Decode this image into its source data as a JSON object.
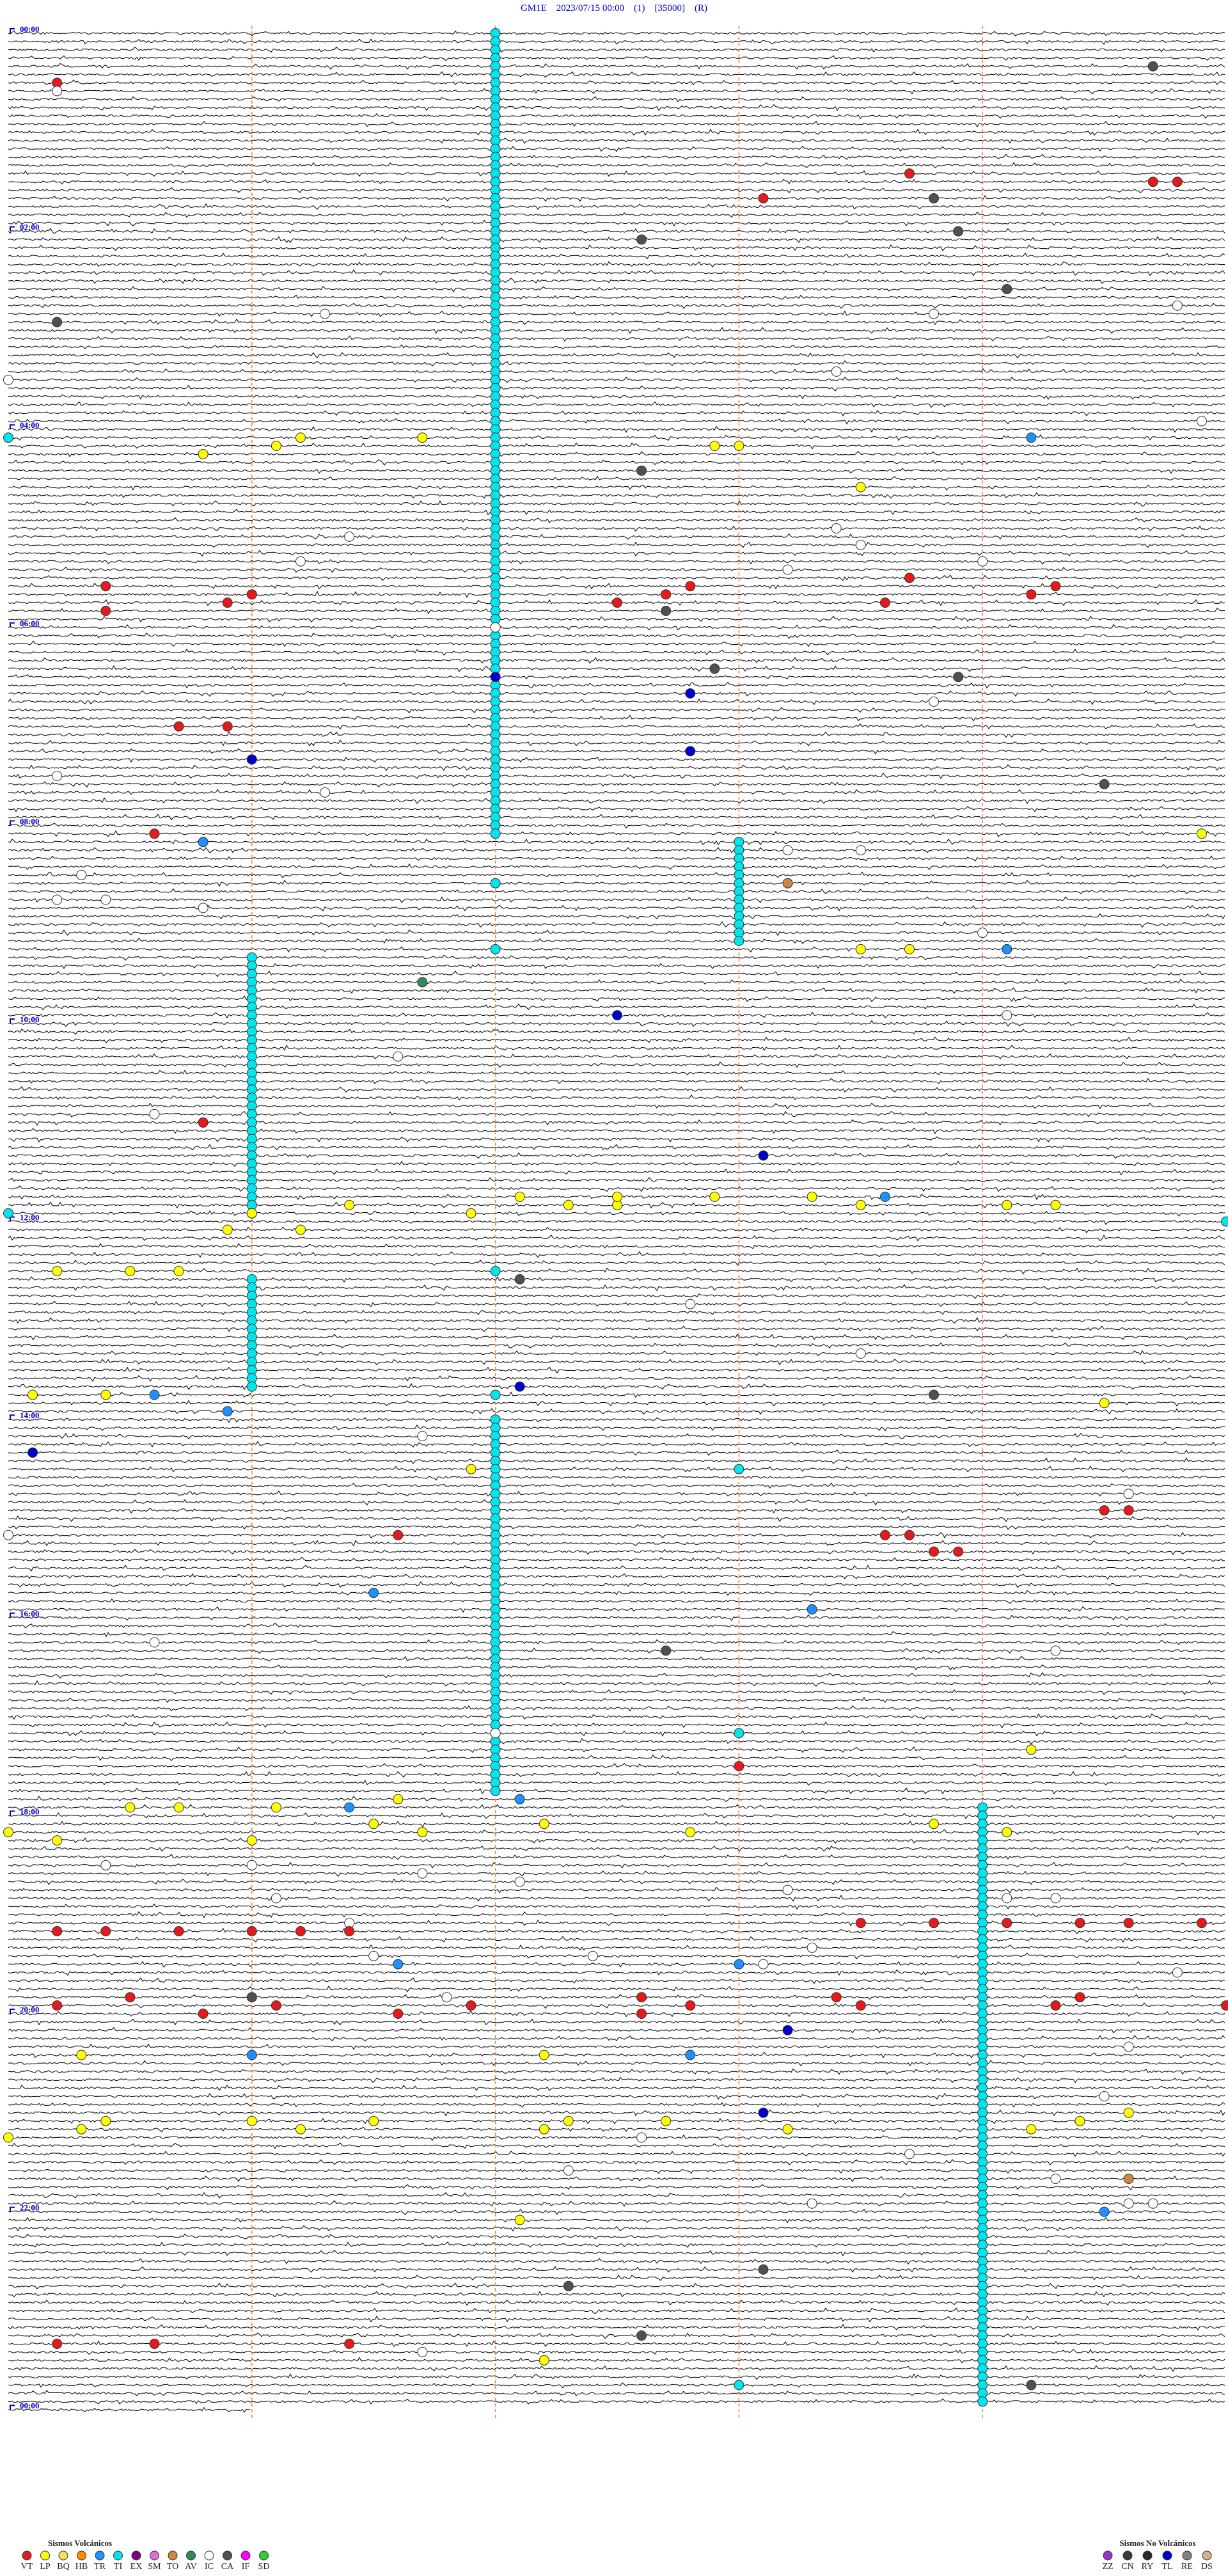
{
  "header": {
    "title": "GM1E    2023/07/15 00:00    (1)    [35000]    (R)"
  },
  "hour_labels": [
    "00:00",
    "02:00",
    "04:00",
    "06:00",
    "08:00",
    "10:00",
    "12:00",
    "14:00",
    "16:00",
    "18:00",
    "20:00",
    "22:00",
    "00:00"
  ],
  "runs": [
    {
      "code": "TI",
      "minute": 2.0,
      "from": 0,
      "to": 97
    },
    {
      "code": "TI",
      "minute": 3.0,
      "from": 98,
      "to": 110
    },
    {
      "code": "TI",
      "minute": 1.0,
      "from": 112,
      "to": 143
    },
    {
      "code": "TI",
      "minute": 1.0,
      "from": 151,
      "to": 164
    },
    {
      "code": "TI",
      "minute": 2.0,
      "from": 168,
      "to": 213
    },
    {
      "code": "TI",
      "minute": 4.0,
      "from": 215,
      "to": 287
    }
  ],
  "events": [
    [
      4,
      4.7,
      "CA"
    ],
    [
      6,
      0.2,
      "VT"
    ],
    [
      7,
      0.2,
      "IC"
    ],
    [
      17,
      3.7,
      "VT"
    ],
    [
      18,
      4.7,
      "VT"
    ],
    [
      18,
      4.8,
      "VT"
    ],
    [
      20,
      3.1,
      "VT"
    ],
    [
      20,
      3.8,
      "CA"
    ],
    [
      24,
      3.9,
      "CA"
    ],
    [
      25,
      2.6,
      "CA"
    ],
    [
      31,
      4.1,
      "CA"
    ],
    [
      33,
      4.8,
      "IC"
    ],
    [
      34,
      1.3,
      "IC"
    ],
    [
      34,
      3.8,
      "IC"
    ],
    [
      35,
      0.2,
      "CA"
    ],
    [
      41,
      3.4,
      "IC"
    ],
    [
      42,
      0.0,
      "IC"
    ],
    [
      47,
      4.9,
      "IC"
    ],
    [
      49,
      0.0,
      "TI"
    ],
    [
      49,
      1.2,
      "LP"
    ],
    [
      49,
      1.7,
      "LP"
    ],
    [
      50,
      1.1,
      "LP"
    ],
    [
      50,
      2.9,
      "LP"
    ],
    [
      50,
      3.0,
      "LP"
    ],
    [
      51,
      0.8,
      "LP"
    ],
    [
      49,
      4.2,
      "TR"
    ],
    [
      53,
      2.6,
      "CA"
    ],
    [
      55,
      3.5,
      "LP"
    ],
    [
      61,
      1.4,
      "IC"
    ],
    [
      60,
      3.4,
      "IC"
    ],
    [
      62,
      3.5,
      "IC"
    ],
    [
      64,
      1.2,
      "IC"
    ],
    [
      64,
      4.0,
      "IC"
    ],
    [
      65,
      3.2,
      "IC"
    ],
    [
      67,
      0.4,
      "VT"
    ],
    [
      66,
      3.7,
      "VT"
    ],
    [
      67,
      4.3,
      "VT"
    ],
    [
      68,
      1.0,
      "VT"
    ],
    [
      69,
      0.9,
      "VT"
    ],
    [
      67,
      2.8,
      "VT"
    ],
    [
      68,
      2.7,
      "VT"
    ],
    [
      69,
      2.5,
      "VT"
    ],
    [
      69,
      3.6,
      "VT"
    ],
    [
      68,
      4.2,
      "VT"
    ],
    [
      70,
      0.4,
      "VT"
    ],
    [
      70,
      2.7,
      "CA"
    ],
    [
      72,
      2.0,
      "IC"
    ],
    [
      77,
      2.9,
      "CA"
    ],
    [
      78,
      3.9,
      "CA"
    ],
    [
      78,
      2.0,
      "TL"
    ],
    [
      80,
      2.8,
      "TL"
    ],
    [
      81,
      3.8,
      "IC"
    ],
    [
      84,
      0.7,
      "VT"
    ],
    [
      84,
      0.9,
      "VT"
    ],
    [
      87,
      2.8,
      "TL"
    ],
    [
      88,
      1.0,
      "TL"
    ],
    [
      90,
      0.2,
      "IC"
    ],
    [
      91,
      4.5,
      "CA"
    ],
    [
      92,
      1.3,
      "IC"
    ],
    [
      97,
      0.6,
      "VT"
    ],
    [
      98,
      0.8,
      "TR"
    ],
    [
      97,
      4.9,
      "LP"
    ],
    [
      99,
      3.2,
      "IC"
    ],
    [
      99,
      3.5,
      "IC"
    ],
    [
      102,
      0.3,
      "IC"
    ],
    [
      103,
      3.2,
      "TO"
    ],
    [
      103,
      2.0,
      "TI"
    ],
    [
      105,
      0.2,
      "IC"
    ],
    [
      105,
      0.4,
      "IC"
    ],
    [
      106,
      0.8,
      "IC"
    ],
    [
      109,
      4.0,
      "IC"
    ],
    [
      111,
      3.5,
      "LP"
    ],
    [
      111,
      3.7,
      "LP"
    ],
    [
      111,
      4.1,
      "TR"
    ],
    [
      111,
      2.0,
      "TI"
    ],
    [
      115,
      1.7,
      "AV"
    ],
    [
      119,
      2.5,
      "TL"
    ],
    [
      119,
      4.1,
      "IC"
    ],
    [
      124,
      1.6,
      "IC"
    ],
    [
      131,
      0.6,
      "IC"
    ],
    [
      132,
      0.8,
      "VT"
    ],
    [
      136,
      3.1,
      "TL"
    ],
    [
      142,
      1.4,
      "LP"
    ],
    [
      141,
      2.1,
      "LP"
    ],
    [
      142,
      2.3,
      "LP"
    ],
    [
      142,
      2.5,
      "LP"
    ],
    [
      141,
      2.5,
      "LP"
    ],
    [
      141,
      2.9,
      "LP"
    ],
    [
      141,
      3.3,
      "LP"
    ],
    [
      142,
      3.5,
      "LP"
    ],
    [
      141,
      3.6,
      "TR"
    ],
    [
      142,
      4.1,
      "LP"
    ],
    [
      142,
      4.3,
      "LP"
    ],
    [
      143,
      1.9,
      "LP"
    ],
    [
      143,
      0.0,
      "TI"
    ],
    [
      144,
      5.0,
      "TI"
    ],
    [
      143,
      1.0,
      "LP"
    ],
    [
      145,
      0.9,
      "LP"
    ],
    [
      145,
      1.2,
      "LP"
    ],
    [
      150,
      0.2,
      "LP"
    ],
    [
      150,
      0.5,
      "LP"
    ],
    [
      150,
      0.7,
      "LP"
    ],
    [
      150,
      2.0,
      "TI"
    ],
    [
      151,
      2.1,
      "CA"
    ],
    [
      154,
      2.8,
      "IC"
    ],
    [
      160,
      3.5,
      "IC"
    ],
    [
      164,
      2.1,
      "TL"
    ],
    [
      165,
      0.1,
      "LP"
    ],
    [
      165,
      0.4,
      "LP"
    ],
    [
      165,
      0.6,
      "TR"
    ],
    [
      165,
      3.8,
      "CA"
    ],
    [
      165,
      2.0,
      "TI"
    ],
    [
      166,
      4.5,
      "LP"
    ],
    [
      167,
      0.9,
      "TR"
    ],
    [
      170,
      1.7,
      "IC"
    ],
    [
      172,
      0.1,
      "TL"
    ],
    [
      174,
      1.9,
      "LP"
    ],
    [
      174,
      3.0,
      "TI"
    ],
    [
      177,
      4.6,
      "IC"
    ],
    [
      179,
      4.5,
      "VT"
    ],
    [
      179,
      4.6,
      "VT"
    ],
    [
      182,
      0.0,
      "IC"
    ],
    [
      182,
      1.6,
      "VT"
    ],
    [
      182,
      3.6,
      "VT"
    ],
    [
      182,
      3.7,
      "VT"
    ],
    [
      184,
      3.8,
      "VT"
    ],
    [
      184,
      3.9,
      "VT"
    ],
    [
      189,
      1.5,
      "TR"
    ],
    [
      191,
      3.3,
      "TR"
    ],
    [
      195,
      0.6,
      "IC"
    ],
    [
      196,
      2.7,
      "CA"
    ],
    [
      196,
      4.3,
      "IC"
    ],
    [
      206,
      2.0,
      "IC"
    ],
    [
      206,
      3.0,
      "TI"
    ],
    [
      208,
      4.2,
      "LP"
    ],
    [
      210,
      3.0,
      "VT"
    ],
    [
      214,
      1.6,
      "LP"
    ],
    [
      214,
      2.1,
      "TR"
    ],
    [
      215,
      0.5,
      "LP"
    ],
    [
      215,
      0.7,
      "LP"
    ],
    [
      215,
      1.1,
      "LP"
    ],
    [
      215,
      1.4,
      "TR"
    ],
    [
      218,
      0.0,
      "LP"
    ],
    [
      217,
      1.5,
      "LP"
    ],
    [
      218,
      1.7,
      "LP"
    ],
    [
      217,
      2.2,
      "LP"
    ],
    [
      218,
      2.8,
      "LP"
    ],
    [
      217,
      3.8,
      "LP"
    ],
    [
      218,
      4.1,
      "LP"
    ],
    [
      219,
      1.0,
      "LP"
    ],
    [
      219,
      0.2,
      "LP"
    ],
    [
      222,
      0.4,
      "IC"
    ],
    [
      222,
      1.0,
      "IC"
    ],
    [
      223,
      1.7,
      "IC"
    ],
    [
      224,
      2.1,
      "IC"
    ],
    [
      225,
      3.2,
      "IC"
    ],
    [
      226,
      1.1,
      "IC"
    ],
    [
      226,
      4.1,
      "IC"
    ],
    [
      226,
      4.3,
      "IC"
    ],
    [
      229,
      1.4,
      "IC"
    ],
    [
      230,
      0.2,
      "VT"
    ],
    [
      230,
      0.4,
      "VT"
    ],
    [
      230,
      0.7,
      "VT"
    ],
    [
      230,
      1.0,
      "VT"
    ],
    [
      230,
      1.2,
      "VT"
    ],
    [
      230,
      1.4,
      "VT"
    ],
    [
      229,
      3.5,
      "VT"
    ],
    [
      229,
      3.8,
      "VT"
    ],
    [
      229,
      4.1,
      "VT"
    ],
    [
      229,
      4.4,
      "VT"
    ],
    [
      229,
      4.6,
      "VT"
    ],
    [
      229,
      4.9,
      "VT"
    ],
    [
      232,
      3.3,
      "IC"
    ],
    [
      233,
      1.5,
      "IC"
    ],
    [
      234,
      1.6,
      "TR"
    ],
    [
      233,
      2.4,
      "IC"
    ],
    [
      234,
      3.0,
      "TR"
    ],
    [
      234,
      3.1,
      "IC"
    ],
    [
      235,
      4.8,
      "IC"
    ],
    [
      238,
      1.0,
      "CA"
    ],
    [
      238,
      1.8,
      "IC"
    ],
    [
      239,
      0.2,
      "VT"
    ],
    [
      238,
      0.5,
      "VT"
    ],
    [
      240,
      0.8,
      "VT"
    ],
    [
      239,
      1.1,
      "VT"
    ],
    [
      240,
      1.6,
      "VT"
    ],
    [
      239,
      1.9,
      "VT"
    ],
    [
      238,
      2.6,
      "VT"
    ],
    [
      240,
      2.6,
      "VT"
    ],
    [
      239,
      2.8,
      "VT"
    ],
    [
      238,
      3.4,
      "VT"
    ],
    [
      239,
      3.5,
      "VT"
    ],
    [
      239,
      4.3,
      "VT"
    ],
    [
      238,
      4.4,
      "VT"
    ],
    [
      239,
      5.0,
      "VT"
    ],
    [
      242,
      3.2,
      "TL"
    ],
    [
      244,
      4.6,
      "IC"
    ],
    [
      245,
      0.3,
      "LP"
    ],
    [
      245,
      1.0,
      "TR"
    ],
    [
      245,
      2.2,
      "LP"
    ],
    [
      245,
      2.8,
      "TR"
    ],
    [
      250,
      4.5,
      "IC"
    ],
    [
      252,
      3.1,
      "TL"
    ],
    [
      252,
      4.6,
      "LP"
    ],
    [
      253,
      0.4,
      "LP"
    ],
    [
      253,
      1.0,
      "LP"
    ],
    [
      253,
      1.5,
      "LP"
    ],
    [
      253,
      2.3,
      "LP"
    ],
    [
      253,
      2.7,
      "LP"
    ],
    [
      253,
      4.4,
      "LP"
    ],
    [
      254,
      0.3,
      "LP"
    ],
    [
      254,
      1.2,
      "LP"
    ],
    [
      254,
      2.2,
      "LP"
    ],
    [
      254,
      3.2,
      "LP"
    ],
    [
      254,
      4.2,
      "LP"
    ],
    [
      255,
      0.0,
      "LP"
    ],
    [
      255,
      2.6,
      "IC"
    ],
    [
      257,
      3.7,
      "IC"
    ],
    [
      259,
      2.3,
      "IC"
    ],
    [
      260,
      4.3,
      "IC"
    ],
    [
      260,
      4.6,
      "TO"
    ],
    [
      263,
      3.3,
      "IC"
    ],
    [
      263,
      4.6,
      "IC"
    ],
    [
      263,
      4.7,
      "IC"
    ],
    [
      264,
      4.5,
      "TR"
    ],
    [
      265,
      2.1,
      "LP"
    ],
    [
      271,
      3.1,
      "CA"
    ],
    [
      273,
      2.3,
      "CA"
    ],
    [
      279,
      2.6,
      "CA"
    ],
    [
      280,
      0.2,
      "VT"
    ],
    [
      280,
      0.6,
      "VT"
    ],
    [
      280,
      1.4,
      "VT"
    ],
    [
      281,
      1.7,
      "IC"
    ],
    [
      282,
      2.2,
      "LP"
    ],
    [
      285,
      4.2,
      "CA"
    ],
    [
      285,
      3.0,
      "TI"
    ]
  ],
  "legend": {
    "volcanic": {
      "title": "Sismos Volcánicos",
      "items": [
        {
          "code": "VT",
          "color": "#e41a1c"
        },
        {
          "code": "LP",
          "color": "#ffff00"
        },
        {
          "code": "BQ",
          "color": "#f0e060"
        },
        {
          "code": "HB",
          "color": "#ff8c00"
        },
        {
          "code": "TR",
          "color": "#1e90ff"
        },
        {
          "code": "TI",
          "color": "#00e5ee"
        },
        {
          "code": "EX",
          "color": "#800080"
        },
        {
          "code": "SM",
          "color": "#da70d6"
        },
        {
          "code": "TO",
          "color": "#cd853f"
        },
        {
          "code": "AV",
          "color": "#2e8b57"
        },
        {
          "code": "IC",
          "color": "#ffffff"
        },
        {
          "code": "CA",
          "color": "#505050"
        },
        {
          "code": "IF",
          "color": "#ff00ff"
        },
        {
          "code": "SD",
          "color": "#32cd32"
        }
      ]
    },
    "non_volcanic": {
      "title": "Sismos No Volcánicos",
      "items": [
        {
          "code": "ZZ",
          "color": "#9932cc"
        },
        {
          "code": "CN",
          "color": "#3a3a3a"
        },
        {
          "code": "RY",
          "color": "#2a2a2a"
        },
        {
          "code": "TL",
          "color": "#0000cd"
        },
        {
          "code": "RE",
          "color": "#808080"
        },
        {
          "code": "DS",
          "color": "#d2b48c"
        }
      ]
    }
  }
}
